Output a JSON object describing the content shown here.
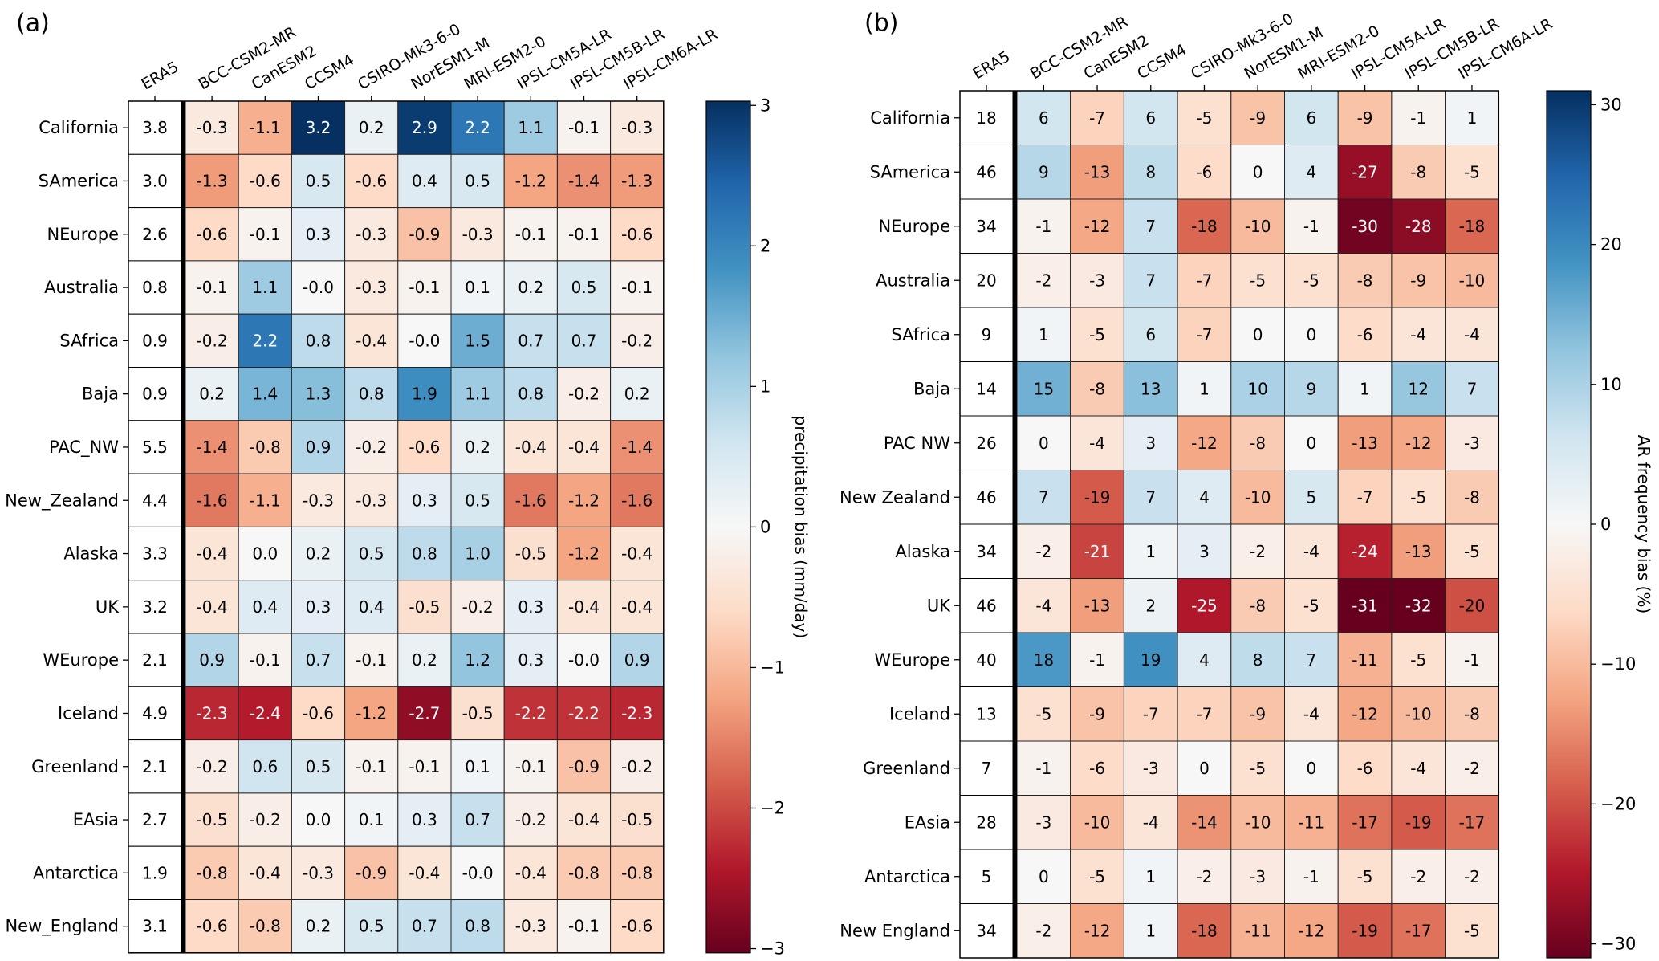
{
  "chart_data": [
    {
      "type": "heatmap",
      "panel_label": "(a)",
      "title": "",
      "columns": [
        "ERA5",
        "BCC-CSM2-MR",
        "CanESM2",
        "CCSM4",
        "CSIRO-Mk3-6-0",
        "NorESM1-M",
        "MRI-ESM2-0",
        "IPSL-CM5A-LR",
        "IPSL-CM5B-LR",
        "IPSL-CM6A-LR"
      ],
      "rows": [
        "California",
        "SAmerica",
        "NEurope",
        "Australia",
        "SAfrica",
        "Baja",
        "PAC_NW",
        "New_Zealand",
        "Alaska",
        "UK",
        "WEurope",
        "Iceland",
        "Greenland",
        "EAsia",
        "Antarctica",
        "New_England"
      ],
      "reference_column": "ERA5",
      "reference_values": [
        "3.8",
        "3.0",
        "2.6",
        "0.8",
        "0.9",
        "0.9",
        "5.5",
        "4.4",
        "3.3",
        "3.2",
        "2.1",
        "4.9",
        "2.1",
        "2.7",
        "1.9",
        "3.1"
      ],
      "values": [
        [
          "-0.3",
          "-1.1",
          "3.2",
          "0.2",
          "2.9",
          "2.2",
          "1.1",
          "-0.1",
          "-0.3"
        ],
        [
          "-1.3",
          "-0.6",
          "0.5",
          "-0.6",
          "0.4",
          "0.5",
          "-1.2",
          "-1.4",
          "-1.3"
        ],
        [
          "-0.6",
          "-0.1",
          "0.3",
          "-0.3",
          "-0.9",
          "-0.3",
          "-0.1",
          "-0.1",
          "-0.6"
        ],
        [
          "-0.1",
          "1.1",
          "-0.0",
          "-0.3",
          "-0.1",
          "0.1",
          "0.2",
          "0.5",
          "-0.1"
        ],
        [
          "-0.2",
          "2.2",
          "0.8",
          "-0.4",
          "-0.0",
          "1.5",
          "0.7",
          "0.7",
          "-0.2"
        ],
        [
          "0.2",
          "1.4",
          "1.3",
          "0.8",
          "1.9",
          "1.1",
          "0.8",
          "-0.2",
          "0.2"
        ],
        [
          "-1.4",
          "-0.8",
          "0.9",
          "-0.2",
          "-0.6",
          "0.2",
          "-0.4",
          "-0.4",
          "-1.4"
        ],
        [
          "-1.6",
          "-1.1",
          "-0.3",
          "-0.3",
          "0.3",
          "0.5",
          "-1.6",
          "-1.2",
          "-1.6"
        ],
        [
          "-0.4",
          "0.0",
          "0.2",
          "0.5",
          "0.8",
          "1.0",
          "-0.5",
          "-1.2",
          "-0.4"
        ],
        [
          "-0.4",
          "0.4",
          "0.3",
          "0.4",
          "-0.5",
          "-0.2",
          "0.3",
          "-0.4",
          "-0.4"
        ],
        [
          "0.9",
          "-0.1",
          "0.7",
          "-0.1",
          "0.2",
          "1.2",
          "0.3",
          "-0.0",
          "0.9"
        ],
        [
          "-2.3",
          "-2.4",
          "-0.6",
          "-1.2",
          "-2.7",
          "-0.5",
          "-2.2",
          "-2.2",
          "-2.3"
        ],
        [
          "-0.2",
          "0.6",
          "0.5",
          "-0.1",
          "-0.1",
          "0.1",
          "-0.1",
          "-0.9",
          "-0.2"
        ],
        [
          "-0.5",
          "-0.2",
          "0.0",
          "0.1",
          "0.3",
          "0.7",
          "-0.2",
          "-0.4",
          "-0.5"
        ],
        [
          "-0.8",
          "-0.4",
          "-0.3",
          "-0.9",
          "-0.4",
          "-0.0",
          "-0.4",
          "-0.8",
          "-0.8"
        ],
        [
          "-0.6",
          "-0.8",
          "0.2",
          "0.5",
          "0.7",
          "0.8",
          "-0.3",
          "-0.1",
          "-0.6"
        ]
      ],
      "colormap": "RdBu",
      "vlim": [
        -3.03,
        3.03
      ],
      "colorbar": {
        "label": "precipitation bias (mm/day)",
        "ticks": [
          3,
          2,
          1,
          0,
          -1,
          -2,
          -3
        ],
        "tick_labels": [
          "3",
          "2",
          "1",
          "0",
          "−1",
          "−2",
          "−3"
        ]
      }
    },
    {
      "type": "heatmap",
      "panel_label": "(b)",
      "title": "",
      "columns": [
        "ERA5",
        "BCC-CSM2-MR",
        "CanESM2",
        "CCSM4",
        "CSIRO-Mk3-6-0",
        "NorESM1-M",
        "MRI-ESM2-0",
        "IPSL-CM5A-LR",
        "IPSL-CM5B-LR",
        "IPSL-CM6A-LR"
      ],
      "rows": [
        "California",
        "SAmerica",
        "NEurope",
        "Australia",
        "SAfrica",
        "Baja",
        "PAC NW",
        "New Zealand",
        "Alaska",
        "UK",
        "WEurope",
        "Iceland",
        "Greenland",
        "EAsia",
        "Antarctica",
        "New England"
      ],
      "reference_column": "ERA5",
      "reference_values": [
        "18",
        "46",
        "34",
        "20",
        "9",
        "14",
        "26",
        "46",
        "34",
        "46",
        "40",
        "13",
        "7",
        "28",
        "5",
        "34"
      ],
      "values": [
        [
          "6",
          "-7",
          "6",
          "-5",
          "-9",
          "6",
          "-9",
          "-1",
          "1"
        ],
        [
          "9",
          "-13",
          "8",
          "-6",
          "0",
          "4",
          "-27",
          "-8",
          "-5"
        ],
        [
          "-1",
          "-12",
          "7",
          "-18",
          "-10",
          "-1",
          "-30",
          "-28",
          "-18"
        ],
        [
          "-2",
          "-3",
          "7",
          "-7",
          "-5",
          "-5",
          "-8",
          "-9",
          "-10"
        ],
        [
          "1",
          "-5",
          "6",
          "-7",
          "0",
          "0",
          "-6",
          "-4",
          "-4"
        ],
        [
          "15",
          "-8",
          "13",
          "1",
          "10",
          "9",
          "1",
          "12",
          "7"
        ],
        [
          "0",
          "-4",
          "3",
          "-12",
          "-8",
          "0",
          "-13",
          "-12",
          "-3"
        ],
        [
          "7",
          "-19",
          "7",
          "4",
          "-10",
          "5",
          "-7",
          "-5",
          "-8"
        ],
        [
          "-2",
          "-21",
          "1",
          "3",
          "-2",
          "-4",
          "-24",
          "-13",
          "-5"
        ],
        [
          "-4",
          "-13",
          "2",
          "-25",
          "-8",
          "-5",
          "-31",
          "-32",
          "-20"
        ],
        [
          "18",
          "-1",
          "19",
          "4",
          "8",
          "7",
          "-11",
          "-5",
          "-1"
        ],
        [
          "-5",
          "-9",
          "-7",
          "-7",
          "-9",
          "-4",
          "-12",
          "-10",
          "-8"
        ],
        [
          "-1",
          "-6",
          "-3",
          "0",
          "-5",
          "0",
          "-6",
          "-4",
          "-2"
        ],
        [
          "-3",
          "-10",
          "-4",
          "-14",
          "-10",
          "-11",
          "-17",
          "-19",
          "-17"
        ],
        [
          "0",
          "-5",
          "1",
          "-2",
          "-3",
          "-1",
          "-5",
          "-2",
          "-2"
        ],
        [
          "-2",
          "-12",
          "1",
          "-18",
          "-11",
          "-12",
          "-19",
          "-17",
          "-5"
        ]
      ],
      "colormap": "RdBu",
      "vlim": [
        -31,
        31
      ],
      "colorbar": {
        "label": "AR frequency bias (%)",
        "ticks": [
          30,
          20,
          10,
          0,
          -10,
          -20,
          -30
        ],
        "tick_labels": [
          "30",
          "20",
          "10",
          "0",
          "−10",
          "−20",
          "−30"
        ]
      }
    }
  ]
}
